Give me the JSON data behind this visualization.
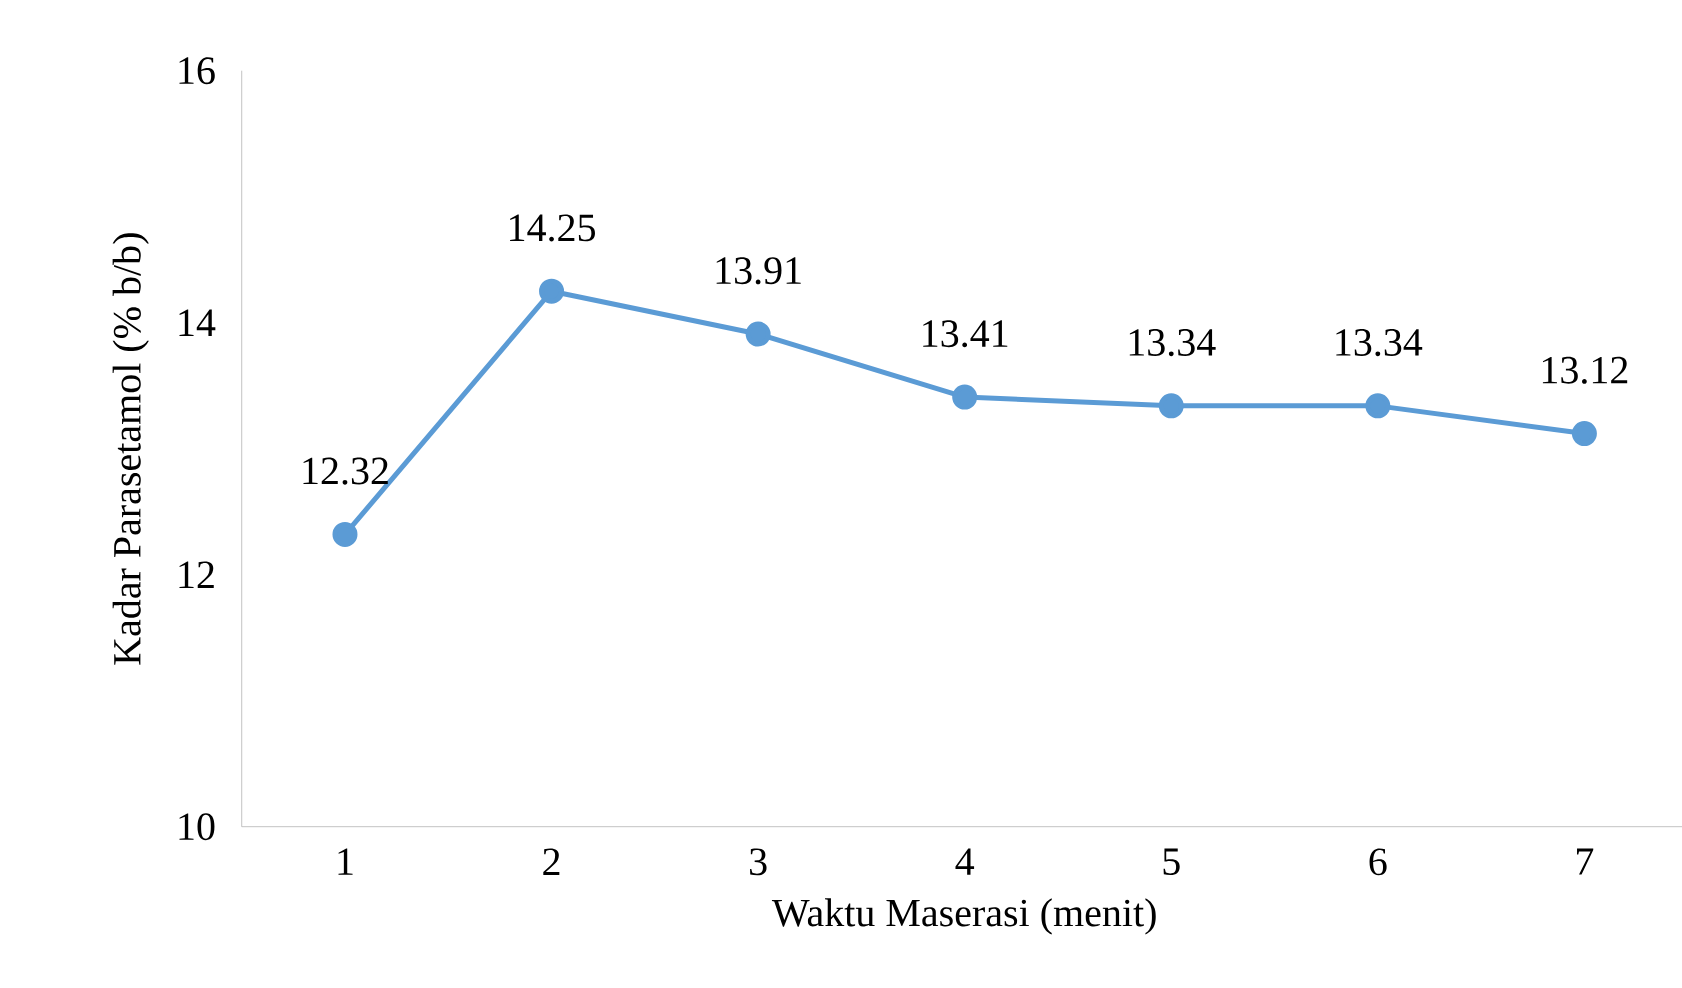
{
  "chart_data": {
    "type": "line",
    "xlabel": "Waktu Maserasi (menit)",
    "ylabel": "Kadar Parasetamol (% b/b)",
    "categories": [
      "1",
      "2",
      "3",
      "4",
      "5",
      "6",
      "7"
    ],
    "values": [
      12.32,
      14.25,
      13.91,
      13.41,
      13.34,
      13.34,
      13.12
    ],
    "color": "#5b9bd5",
    "marker": "circle",
    "line_style": "solid",
    "data_labels": true,
    "grid": false,
    "ylim": [
      10,
      16
    ],
    "yticks": [
      10,
      12,
      14,
      16
    ]
  }
}
